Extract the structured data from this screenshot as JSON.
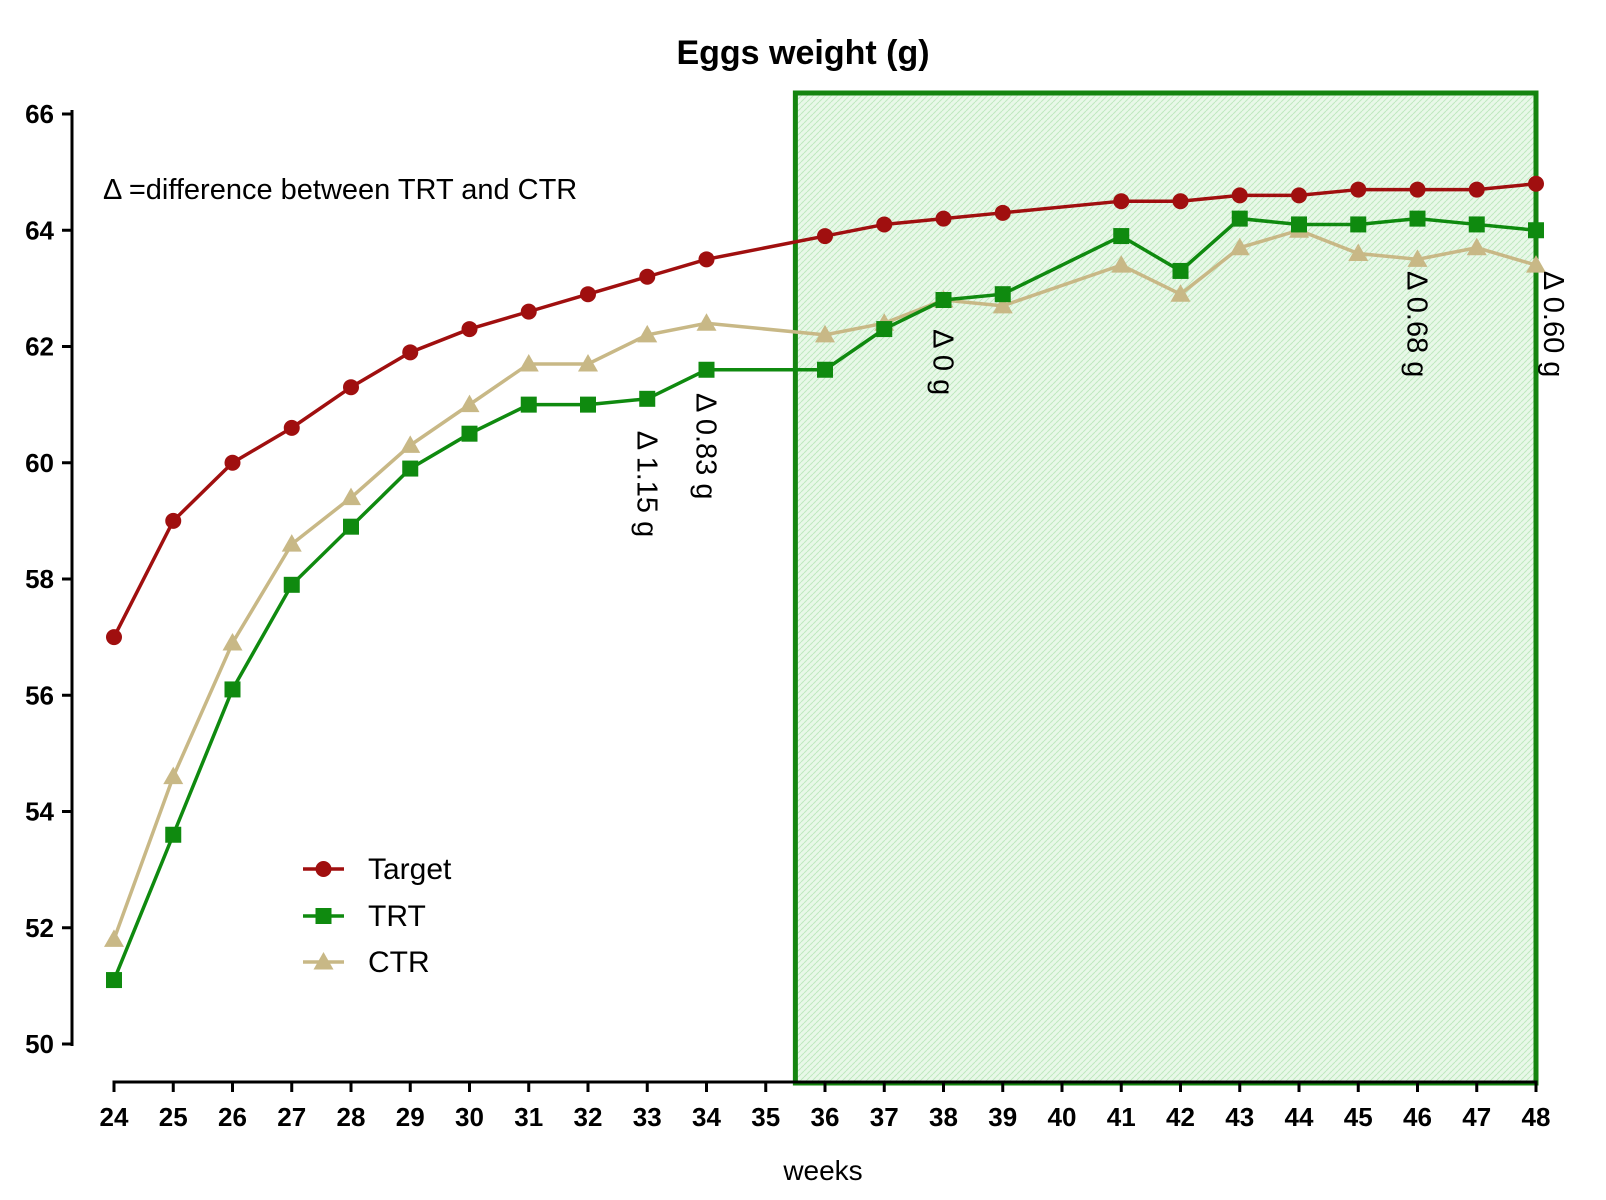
{
  "chart_data": {
    "type": "line",
    "title": "Eggs weight (g)",
    "xlabel": "weeks",
    "ylabel": "",
    "xlim": [
      24,
      48
    ],
    "ylim": [
      50,
      66
    ],
    "xticks": [
      "24",
      "25",
      "26",
      "27",
      "28",
      "29",
      "30",
      "31",
      "32",
      "33",
      "34",
      "35",
      "36",
      "37",
      "38",
      "39",
      "40",
      "41",
      "42",
      "43",
      "44",
      "45",
      "46",
      "47",
      "48"
    ],
    "yticks": [
      "50",
      "52",
      "54",
      "56",
      "58",
      "60",
      "62",
      "64",
      "66"
    ],
    "grid": false,
    "legend_position": "bottom-left",
    "note": "Δ =difference between TRT and CTR",
    "highlight_region": {
      "x_from": 35.5,
      "x_to": 48,
      "color": "#14850f",
      "fill": "#e3f7e3"
    },
    "series": [
      {
        "name": "Target",
        "color": "#a00f0f",
        "marker": "circle",
        "x": [
          24,
          25,
          26,
          27,
          28,
          29,
          30,
          31,
          32,
          33,
          34,
          36,
          37,
          38,
          39,
          41,
          42,
          43,
          44,
          45,
          46,
          47,
          48
        ],
        "values": [
          57.0,
          59.0,
          60.0,
          60.6,
          61.3,
          61.9,
          62.3,
          62.6,
          62.9,
          63.2,
          63.5,
          63.9,
          64.1,
          64.2,
          64.3,
          64.5,
          64.5,
          64.6,
          64.6,
          64.7,
          64.7,
          64.7,
          64.8
        ]
      },
      {
        "name": "TRT",
        "color": "#0f8a0f",
        "marker": "square",
        "x": [
          24,
          25,
          26,
          27,
          28,
          29,
          30,
          31,
          32,
          33,
          34,
          36,
          37,
          38,
          39,
          41,
          42,
          43,
          44,
          45,
          46,
          47,
          48
        ],
        "values": [
          51.1,
          53.6,
          56.1,
          57.9,
          58.9,
          59.9,
          60.5,
          61.0,
          61.0,
          61.1,
          61.6,
          61.6,
          62.3,
          62.8,
          62.9,
          63.9,
          63.3,
          64.2,
          64.1,
          64.1,
          64.2,
          64.1,
          64.0
        ]
      },
      {
        "name": "CTR",
        "color": "#c8b886",
        "marker": "triangle",
        "x": [
          24,
          25,
          26,
          27,
          28,
          29,
          30,
          31,
          32,
          33,
          34,
          36,
          37,
          38,
          39,
          41,
          42,
          43,
          44,
          45,
          46,
          47,
          48
        ],
        "values": [
          51.8,
          54.6,
          56.9,
          58.6,
          59.4,
          60.3,
          61.0,
          61.7,
          61.7,
          62.2,
          62.4,
          62.2,
          62.4,
          62.8,
          62.7,
          63.4,
          62.9,
          63.7,
          64.0,
          63.6,
          63.5,
          63.7,
          63.4
        ]
      }
    ],
    "annotations": [
      {
        "text": "Δ 1.15 g",
        "x": 33,
        "y": 60.55
      },
      {
        "text": "Δ 0.83 g",
        "x": 34,
        "y": 61.2
      },
      {
        "text": "Δ 0 g",
        "x": 38,
        "y": 62.3
      },
      {
        "text": "Δ 0.68 g",
        "x": 46,
        "y": 63.3
      },
      {
        "text": "Δ 0.60 g",
        "x": 48.3,
        "y": 63.3
      }
    ]
  }
}
